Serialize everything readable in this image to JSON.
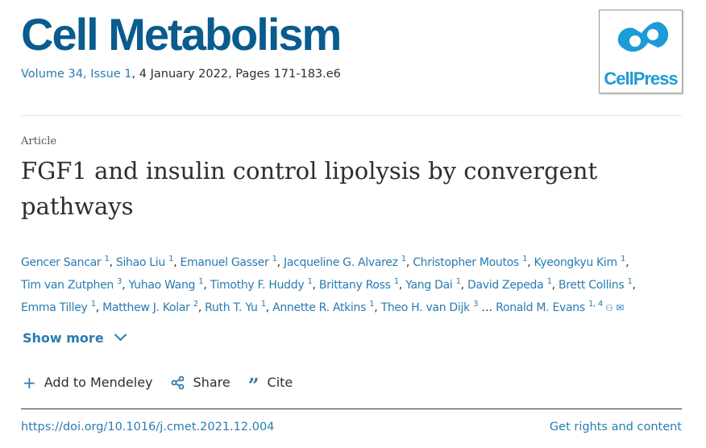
{
  "journal": {
    "name": "Cell Metabolism",
    "volume_link": "Volume 34, Issue 1",
    "date_pages": ", 4 January 2022, Pages 171-183.e6",
    "logo_text": "CellPress"
  },
  "article": {
    "type": "Article",
    "title": "FGF1 and insulin control lipolysis by convergent pathways"
  },
  "authors": [
    {
      "name": "Gencer Sancar",
      "aff": "1"
    },
    {
      "name": "Sihao Liu",
      "aff": "1"
    },
    {
      "name": "Emanuel Gasser",
      "aff": "1"
    },
    {
      "name": "Jacqueline G. Alvarez",
      "aff": "1"
    },
    {
      "name": "Christopher Moutos",
      "aff": "1"
    },
    {
      "name": "Kyeongkyu Kim",
      "aff": "1"
    },
    {
      "name": "Tim van Zutphen",
      "aff": "3"
    },
    {
      "name": "Yuhao Wang",
      "aff": "1"
    },
    {
      "name": "Timothy F. Huddy",
      "aff": "1"
    },
    {
      "name": "Brittany Ross",
      "aff": "1"
    },
    {
      "name": "Yang Dai",
      "aff": "1"
    },
    {
      "name": "David Zepeda",
      "aff": "1"
    },
    {
      "name": "Brett Collins",
      "aff": "1"
    },
    {
      "name": "Emma Tilley",
      "aff": "1"
    },
    {
      "name": "Matthew J. Kolar",
      "aff": "2"
    },
    {
      "name": "Ruth T. Yu",
      "aff": "1"
    },
    {
      "name": "Annette R. Atkins",
      "aff": "1"
    },
    {
      "name": "Theo H. van Dijk",
      "aff": "3"
    }
  ],
  "ellipsis": " … ",
  "last_author": {
    "name": "Ronald M. Evans",
    "aff": "1, 4"
  },
  "show_more": "Show more",
  "actions": {
    "mendeley": "Add to Mendeley",
    "share": "Share",
    "cite": "Cite"
  },
  "doi": "https://doi.org/10.1016/j.cmet.2021.12.004",
  "rights": "Get rights and content",
  "colors": {
    "journal": "#0a5b8e",
    "link": "#2a7bb0",
    "logo": "#1e9ad6"
  }
}
